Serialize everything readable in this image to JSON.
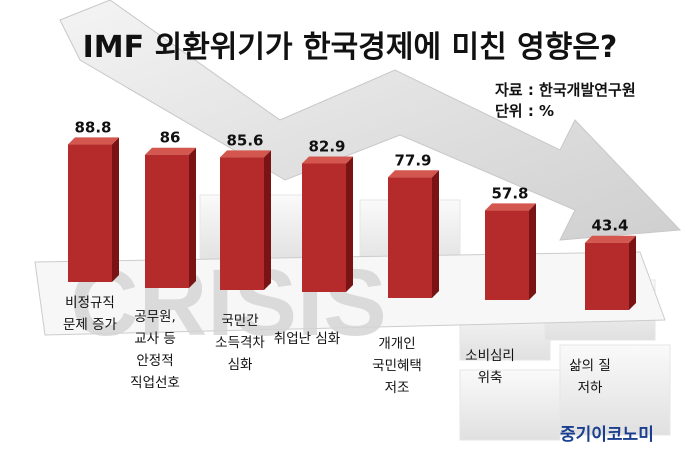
{
  "title": "IMF 외환위기가 한국경제에 미친 영향은?",
  "source": {
    "line1": "자료 : 한국개발연구원",
    "line2": "단위 : %"
  },
  "watermark": "중기이코노미",
  "background_text": "CRISIS",
  "colors": {
    "bar": "#b52a2a",
    "bar_dark": "#7a1414",
    "bar_top": "#d4574f",
    "arrow": "#dcdcdc"
  },
  "chart_data": {
    "type": "bar",
    "title": "IMF 외환위기가 한국경제에 미친 영향은?",
    "categories": [
      "비정규직\n문제 증가",
      "공무원,\n교사 등\n안정적\n직업선호",
      "국민간\n소득격차\n심화",
      "취업난 심화",
      "개개인\n국민혜택\n저조",
      "소비심리\n위축",
      "삶의 질\n저하"
    ],
    "values": [
      88.8,
      86,
      85.6,
      82.9,
      77.9,
      57.8,
      43.4
    ],
    "value_labels": [
      "88.8",
      "86",
      "85.6",
      "82.9",
      "77.9",
      "57.8",
      "43.4"
    ],
    "unit": "%",
    "xlabel": "",
    "ylabel": "",
    "grid": false,
    "legend": "none"
  }
}
